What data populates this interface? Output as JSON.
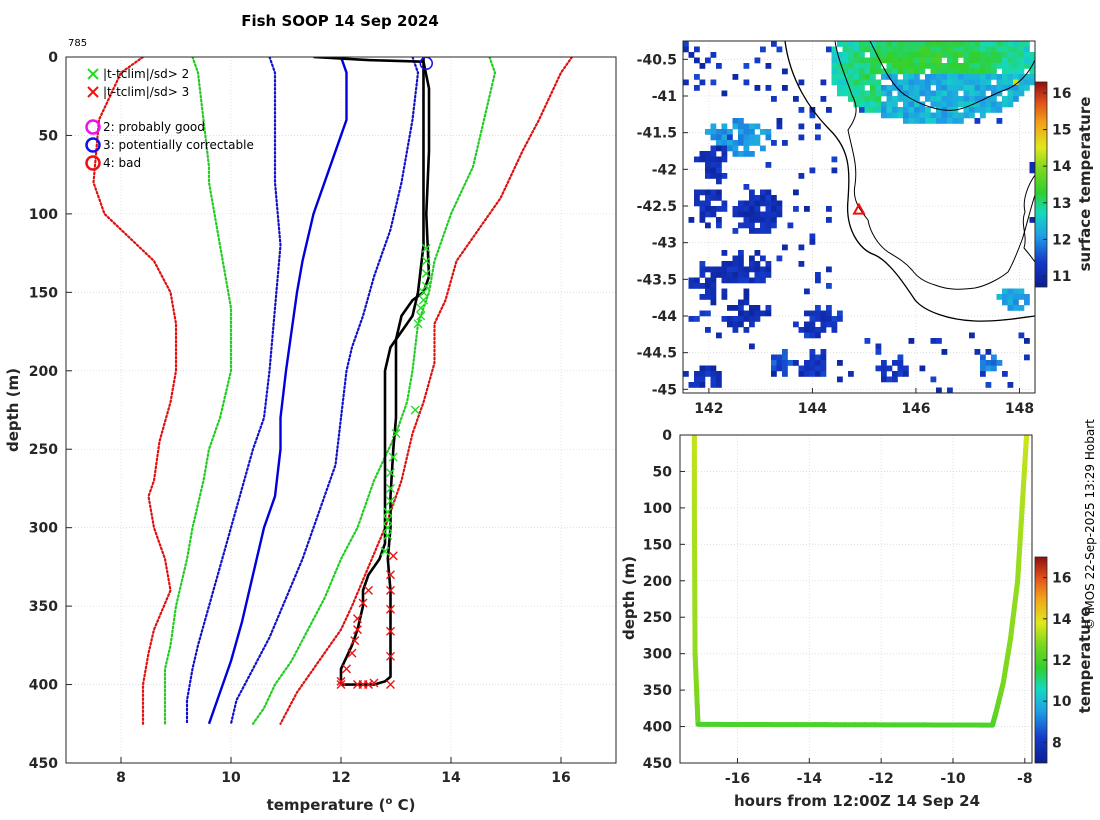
{
  "title": "Fish SOOP 14 Sep 2024",
  "drop_id": "785",
  "credit": "© IMOS 22-Sep-2025 13:29 Hobart",
  "chart_data": [
    {
      "type": "line",
      "name": "profile",
      "xlabel": "temperature (",
      "xlabel_sup": "o",
      "xlabel_tail": " C)",
      "ylabel": "depth (m)",
      "xlim": [
        7,
        17
      ],
      "ylim": [
        450,
        0
      ],
      "xticks": [
        8,
        10,
        12,
        14,
        16
      ],
      "yticks": [
        0,
        50,
        100,
        150,
        200,
        250,
        300,
        350,
        400,
        450
      ],
      "grid": true,
      "legend": {
        "cross_items": [
          {
            "label": "|t-tclim|/sd> 2",
            "color": "#22dd22"
          },
          {
            "label": "|t-tclim|/sd> 3",
            "color": "#ee1111"
          }
        ],
        "circle_items": [
          {
            "label": "2: probably good",
            "color": "#ee11ee"
          },
          {
            "label": "3: potentially correctable",
            "color": "#1111ee"
          },
          {
            "label": "4: bad",
            "color": "#ee1111"
          }
        ]
      },
      "series": [
        {
          "name": "clim-3sd-low",
          "style": "dotted",
          "color": "#dd1111",
          "x": [
            8.4,
            8.0,
            7.6,
            7.5,
            7.7,
            8.0,
            8.3,
            8.6,
            8.9,
            9.0,
            9.0,
            9.0,
            8.9,
            8.7,
            8.6,
            8.5,
            8.6,
            8.8,
            8.9,
            8.6,
            8.5,
            8.4,
            8.4,
            8.4,
            8.4
          ],
          "y": [
            0,
            10,
            40,
            80,
            100,
            110,
            120,
            130,
            150,
            170,
            185,
            200,
            220,
            245,
            270,
            280,
            300,
            320,
            340,
            365,
            380,
            400,
            410,
            420,
            425
          ]
        },
        {
          "name": "clim-2sd-low",
          "style": "dotted",
          "color": "#22cc22",
          "x": [
            9.3,
            9.4,
            9.5,
            9.6,
            9.6,
            9.7,
            9.8,
            9.9,
            10.0,
            10.0,
            10.0,
            9.8,
            9.6,
            9.5,
            9.3,
            9.2,
            9.0,
            8.9,
            8.8,
            8.8,
            8.8,
            8.8
          ],
          "y": [
            0,
            10,
            40,
            70,
            80,
            100,
            120,
            140,
            160,
            180,
            200,
            230,
            250,
            270,
            300,
            320,
            350,
            375,
            390,
            400,
            410,
            425
          ]
        },
        {
          "name": "clim-mean-low",
          "style": "dotted",
          "color": "#1111cc",
          "x": [
            10.7,
            10.8,
            10.8,
            10.8,
            10.9,
            10.8,
            10.7,
            10.6,
            10.4,
            10.2,
            10.0,
            9.8,
            9.6,
            9.4,
            9.3,
            9.2,
            9.2
          ],
          "y": [
            0,
            10,
            40,
            80,
            120,
            160,
            200,
            230,
            250,
            275,
            300,
            325,
            350,
            375,
            390,
            410,
            425
          ]
        },
        {
          "name": "clim-mean",
          "style": "solid",
          "color": "#0000dd",
          "x": [
            12.0,
            12.1,
            12.1,
            11.8,
            11.5,
            11.3,
            11.2,
            11.0,
            10.9,
            10.9,
            10.8,
            10.6,
            10.4,
            10.2,
            10.0,
            9.8,
            9.6
          ],
          "y": [
            0,
            10,
            40,
            70,
            100,
            130,
            150,
            200,
            230,
            250,
            280,
            300,
            330,
            360,
            385,
            405,
            425
          ]
        },
        {
          "name": "clim-mean-high",
          "style": "dotted",
          "color": "#1111cc",
          "x": [
            13.3,
            13.4,
            13.3,
            13.1,
            12.9,
            12.6,
            12.4,
            12.2,
            12.1,
            12.0,
            11.9,
            11.6,
            11.3,
            11.0,
            10.7,
            10.4,
            10.1,
            10.0
          ],
          "y": [
            0,
            10,
            40,
            80,
            110,
            140,
            165,
            185,
            200,
            230,
            260,
            290,
            320,
            345,
            370,
            390,
            410,
            425
          ]
        },
        {
          "name": "clim-2sd-high",
          "style": "dotted",
          "color": "#22cc22",
          "x": [
            14.7,
            14.8,
            14.6,
            14.4,
            14.0,
            13.7,
            13.6,
            13.4,
            13.3,
            13.2,
            13.0,
            12.6,
            12.3,
            12.0,
            11.7,
            11.4,
            11.1,
            10.8,
            10.6,
            10.4
          ],
          "y": [
            0,
            10,
            40,
            70,
            100,
            130,
            150,
            170,
            200,
            220,
            240,
            270,
            300,
            320,
            345,
            365,
            385,
            400,
            415,
            425
          ]
        },
        {
          "name": "clim-3sd-high",
          "style": "dotted",
          "color": "#dd1111",
          "x": [
            16.2,
            16.0,
            15.6,
            15.3,
            14.9,
            14.5,
            14.1,
            13.9,
            13.7,
            13.7,
            13.5,
            13.3,
            13.1,
            12.8,
            12.5,
            12.2,
            12.0,
            11.6,
            11.2,
            10.9
          ],
          "y": [
            0,
            10,
            40,
            60,
            90,
            110,
            130,
            155,
            170,
            195,
            220,
            240,
            270,
            300,
            325,
            350,
            365,
            385,
            405,
            425
          ]
        },
        {
          "name": "profile-down",
          "style": "solid",
          "color": "#000000",
          "x": [
            11.5,
            12.5,
            13.5,
            13.6,
            13.6,
            13.55,
            13.6,
            13.5,
            13.3,
            13.1,
            13.0,
            13.0,
            13.0,
            12.95,
            12.9,
            12.9,
            12.85,
            12.9,
            12.9,
            12.9,
            12.9,
            12.9,
            12.8,
            12.6,
            12.4,
            12.0
          ],
          "y": [
            0,
            2,
            3,
            20,
            60,
            100,
            140,
            150,
            155,
            165,
            180,
            200,
            230,
            250,
            280,
            300,
            320,
            340,
            360,
            380,
            390,
            395,
            398,
            400,
            400,
            400
          ]
        },
        {
          "name": "profile-up",
          "style": "solid",
          "color": "#000000",
          "x": [
            12.0,
            12.0,
            12.2,
            12.3,
            12.4,
            12.4,
            12.5,
            12.7,
            12.8,
            12.8,
            12.8,
            12.8,
            12.8,
            12.8,
            12.8,
            12.9,
            13.1,
            13.3,
            13.4,
            13.5,
            13.5,
            13.5,
            13.5
          ],
          "y": [
            400,
            390,
            375,
            365,
            350,
            340,
            330,
            320,
            310,
            300,
            280,
            260,
            240,
            220,
            200,
            185,
            175,
            165,
            150,
            120,
            60,
            20,
            0
          ]
        }
      ],
      "markers": {
        "green_cross": {
          "color": "#22dd22",
          "x": [
            13.55,
            13.55,
            13.55,
            13.55,
            13.5,
            13.5,
            13.45,
            13.45,
            13.4,
            13.35,
            13.0,
            12.95,
            12.9,
            12.9,
            12.9,
            12.85,
            12.85,
            12.85,
            12.85,
            12.8
          ],
          "y": [
            122,
            130,
            138,
            146,
            150,
            155,
            160,
            165,
            170,
            225,
            240,
            255,
            265,
            275,
            283,
            290,
            295,
            300,
            305,
            315
          ]
        },
        "red_cross": {
          "color": "#ee1111",
          "x": [
            12.95,
            12.9,
            12.9,
            12.9,
            12.9,
            12.9,
            12.9,
            12.5,
            12.4,
            12.3,
            12.3,
            12.25,
            12.2,
            12.1,
            12.0,
            12.0,
            12.3,
            12.4,
            12.5,
            12.6
          ],
          "y": [
            318,
            330,
            340,
            352,
            366,
            382,
            400,
            340,
            348,
            358,
            365,
            372,
            380,
            390,
            398,
            400,
            400,
            400,
            400,
            399
          ]
        },
        "qc_circle": {
          "color": "#1111ee",
          "x": [
            13.55
          ],
          "y": [
            4
          ]
        }
      }
    },
    {
      "type": "heatmap",
      "name": "sst-map",
      "xlim": [
        141.5,
        148.3
      ],
      "ylim": [
        -45.05,
        -40.25
      ],
      "xticks": [
        142,
        144,
        146,
        148
      ],
      "yticks": [
        -40.5,
        -41,
        -41.5,
        -42,
        -42.5,
        -43,
        -43.5,
        -44,
        -44.5,
        -45
      ],
      "colorbar_label": "surface temperature",
      "colorbar_ticks": [
        11,
        12,
        13,
        14,
        15,
        16
      ],
      "colorbar_range": [
        10.7,
        16.3
      ],
      "track_marker": {
        "lon": 144.9,
        "lat": -42.55,
        "color": "#ee1111"
      }
    },
    {
      "type": "scatter",
      "name": "depth-time",
      "xlabel": "hours from 12:00Z 14 Sep 24",
      "ylabel": "depth (m)",
      "xlim": [
        -17.6,
        -7.8
      ],
      "ylim": [
        450,
        0
      ],
      "xticks": [
        -16,
        -14,
        -12,
        -10,
        -8
      ],
      "yticks": [
        0,
        50,
        100,
        150,
        200,
        250,
        300,
        350,
        400,
        450
      ],
      "colorbar_label": "temperature",
      "colorbar_ticks": [
        8,
        10,
        12,
        14,
        16
      ],
      "colorbar_range": [
        7,
        17
      ],
      "segments": [
        {
          "x": [
            -17.2,
            -17.2,
            -17.18,
            -17.1
          ],
          "y": [
            0,
            100,
            300,
            395
          ],
          "t": [
            13.5,
            13.3,
            13.0,
            12.6
          ]
        },
        {
          "x": [
            -17.1,
            -8.9
          ],
          "y": [
            397,
            398
          ],
          "t": [
            12.0,
            12.0
          ]
        },
        {
          "x": [
            -8.9,
            -8.8,
            -8.6,
            -8.4,
            -8.2,
            -8.1,
            -8.0,
            -7.95
          ],
          "y": [
            398,
            380,
            340,
            280,
            200,
            120,
            40,
            0
          ],
          "t": [
            12.0,
            12.3,
            12.7,
            12.9,
            13.0,
            13.2,
            13.4,
            13.6
          ]
        }
      ]
    }
  ]
}
